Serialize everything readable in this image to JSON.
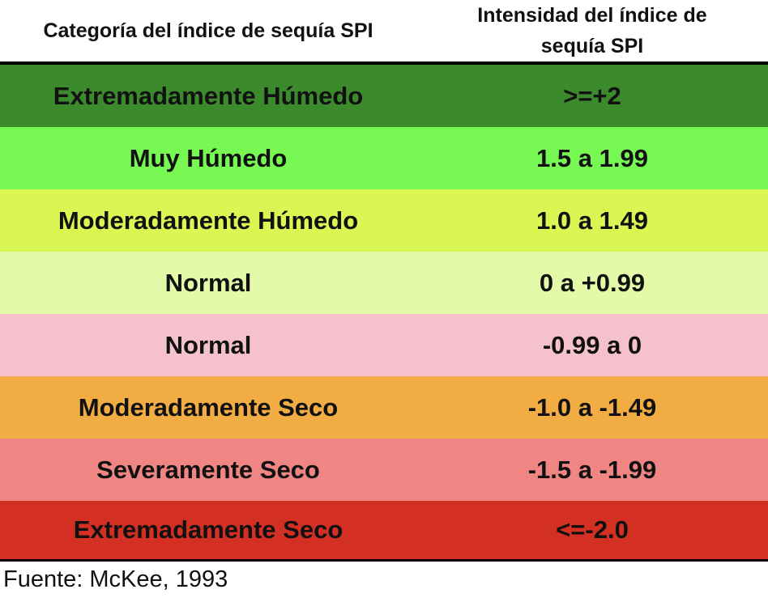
{
  "table": {
    "header": [
      "Categoría del índice de sequía SPI",
      "Intensidad del índice de sequía SPI"
    ],
    "rows": [
      {
        "category": "Extremadamente Húmedo",
        "intensity": ">=+2",
        "color": "#3b8a2c"
      },
      {
        "category": "Muy Húmedo",
        "intensity": "1.5 a 1.99",
        "color": "#77f852"
      },
      {
        "category": "Moderadamente Húmedo",
        "intensity": "1.0 a 1.49",
        "color": "#d9f653"
      },
      {
        "category": "Normal",
        "intensity": "0 a +0.99",
        "color": "#e3fba8"
      },
      {
        "category": "Normal",
        "intensity": "-0.99 a 0",
        "color": "#f5c1cc"
      },
      {
        "category": "Moderadamente Seco",
        "intensity": "-1.0 a -1.49",
        "color": "#f1ac43"
      },
      {
        "category": "Severamente Seco",
        "intensity": "-1.5 a -1.99",
        "color": "#ef8683"
      },
      {
        "category": "Extremadamente Seco",
        "intensity": "<=-2.0",
        "color": "#d32f23"
      }
    ],
    "source": "Fuente: McKee, 1993"
  }
}
